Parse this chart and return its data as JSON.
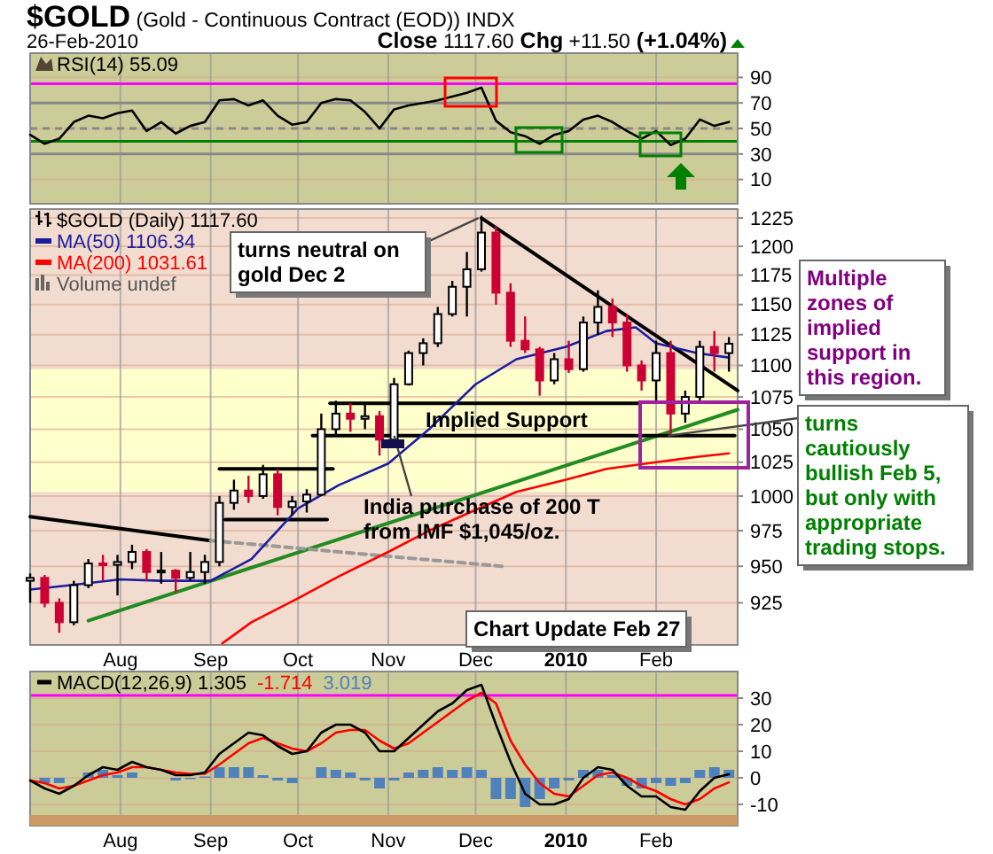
{
  "chart_data": [
    {
      "type": "line",
      "title": "$GOLD (Gold - Continuous Contract (EOD)) INDX",
      "subtitle": "26-Feb-2010",
      "annotations": [
        "Close 1117.60 Chg +11.50 (+1.04%)"
      ],
      "xlim": [
        "2009-07-01",
        "2010-03-01"
      ],
      "xticks": [
        {
          "value": "2009-08-01",
          "label": null
        },
        {
          "value": "2009-09-01",
          "label": null
        },
        {
          "value": "2009-10-01",
          "label": null
        },
        {
          "value": "2009-11-01",
          "label": null
        },
        {
          "value": "2009-12-01",
          "label": null
        },
        {
          "value": "2010-01-01",
          "label": null
        },
        {
          "value": "2010-02-01",
          "label": null
        }
      ],
      "tick_labels": "y",
      "ylim": [
        -9,
        109
      ],
      "yticks": [
        10,
        30,
        50,
        70,
        90
      ],
      "grid": true,
      "legend": "top left",
      "x": [
        "2009-07-01",
        "2009-07-06",
        "2009-07-11",
        "2009-07-16",
        "2009-07-21",
        "2009-07-26",
        "2009-07-31",
        "2009-08-05",
        "2009-08-10",
        "2009-08-15",
        "2009-08-20",
        "2009-08-25",
        "2009-08-30",
        "2009-09-04",
        "2009-09-09",
        "2009-09-14",
        "2009-09-19",
        "2009-09-24",
        "2009-09-29",
        "2009-10-04",
        "2009-10-09",
        "2009-10-14",
        "2009-10-19",
        "2009-10-24",
        "2009-10-29",
        "2009-11-03",
        "2009-11-08",
        "2009-11-13",
        "2009-11-18",
        "2009-11-23",
        "2009-11-28",
        "2009-12-03",
        "2009-12-08",
        "2009-12-13",
        "2009-12-18",
        "2009-12-23",
        "2009-12-28",
        "2010-01-02",
        "2010-01-07",
        "2010-01-12",
        "2010-01-17",
        "2010-01-22",
        "2010-01-27",
        "2010-02-01",
        "2010-02-06",
        "2010-02-11",
        "2010-02-16",
        "2010-02-21",
        "2010-02-26"
      ],
      "series": [
        {
          "name": "RSI(14) 55.09",
          "color": "#000000",
          "values": [
            45,
            38,
            42,
            55,
            60,
            58,
            62,
            64,
            48,
            55,
            46,
            52,
            55,
            72,
            73,
            68,
            72,
            60,
            53,
            55,
            70,
            73,
            72,
            63,
            50,
            65,
            68,
            70,
            72,
            75,
            78,
            82,
            56,
            47,
            44,
            38,
            45,
            48,
            57,
            60,
            55,
            48,
            42,
            48,
            37,
            42,
            57,
            52,
            55.09
          ]
        }
      ],
      "ref_lines": [
        {
          "axis": "y",
          "value": 85,
          "color": "#ff00ff"
        },
        {
          "axis": "y",
          "value": 70,
          "color": "#888888"
        },
        {
          "axis": "y",
          "value": 50,
          "color": "#888888",
          "line_style": "dashed"
        },
        {
          "axis": "y",
          "value": 40,
          "color": "#008000"
        },
        {
          "axis": "y",
          "value": 30,
          "color": "#888888"
        }
      ]
    },
    {
      "type": "candlestick",
      "annotations": [
        "Volume undef",
        {
          "text": "turns neutral on gold Dec 2",
          "x": "2009-12-02",
          "y": 1225
        },
        "Implied Support",
        {
          "text": "India purchase of 200 T from IMF $1,045/oz.",
          "x": "2009-11-03",
          "y": 1045
        },
        "Multiple zones of implied support in this region.",
        {
          "text": "turns cautiously bullish Feb 5, but only with appropriate trading stops.",
          "x": "2010-02-05",
          "y": 1045
        },
        "Chart Update Feb 27"
      ],
      "xlim": [
        "2009-07-01",
        "2010-03-01"
      ],
      "xticks": [
        {
          "value": "2009-08-01",
          "label": "Aug"
        },
        {
          "value": "2009-09-01",
          "label": "Sep"
        },
        {
          "value": "2009-10-01",
          "label": "Oct"
        },
        {
          "value": "2009-11-01",
          "label": "Nov"
        },
        {
          "value": "2009-12-01",
          "label": "Dec"
        },
        {
          "value": "2010-01-01",
          "label": "2010"
        },
        {
          "value": "2010-02-01",
          "label": "Feb"
        }
      ],
      "ylim": [
        897,
        1233
      ],
      "log": true,
      "yticks": [
        925,
        950,
        975,
        1000,
        1025,
        1050,
        1075,
        1100,
        1125,
        1150,
        1175,
        1200,
        1225
      ],
      "grid": true,
      "legend": "top left",
      "bands": [
        {
          "axis": "y",
          "from": 1003,
          "to": 1097,
          "color": "#ffffcc"
        }
      ],
      "x": [
        "2009-07-01",
        "2009-07-06",
        "2009-07-11",
        "2009-07-16",
        "2009-07-21",
        "2009-07-26",
        "2009-07-31",
        "2009-08-05",
        "2009-08-10",
        "2009-08-15",
        "2009-08-20",
        "2009-08-25",
        "2009-08-30",
        "2009-09-04",
        "2009-09-09",
        "2009-09-14",
        "2009-09-19",
        "2009-09-24",
        "2009-09-29",
        "2009-10-04",
        "2009-10-09",
        "2009-10-14",
        "2009-10-19",
        "2009-10-24",
        "2009-10-29",
        "2009-11-03",
        "2009-11-08",
        "2009-11-13",
        "2009-11-18",
        "2009-11-23",
        "2009-11-28",
        "2009-12-03",
        "2009-12-08",
        "2009-12-13",
        "2009-12-18",
        "2009-12-23",
        "2009-12-28",
        "2010-01-02",
        "2010-01-07",
        "2010-01-12",
        "2010-01-17",
        "2010-01-22",
        "2010-01-27",
        "2010-02-01",
        "2010-02-06",
        "2010-02-11",
        "2010-02-16",
        "2010-02-21",
        "2010-02-26"
      ],
      "series": [
        {
          "type": "line",
          "color": "#228b22",
          "x": [
            "2009-07-21",
            "2010-03-01"
          ],
          "values": [
            913,
            1065
          ]
        },
        {
          "type": "line",
          "color": "#000000",
          "x": [
            "2009-07-01",
            "2009-09-01"
          ],
          "values": [
            985,
            968
          ]
        },
        {
          "type": "line",
          "color": "#999999",
          "line_style": "dashed",
          "x": [
            "2009-09-01",
            "2009-12-10"
          ],
          "values": [
            968,
            950
          ]
        },
        {
          "type": "line",
          "color": "#000000",
          "x": [
            "2009-12-03",
            "2010-03-01"
          ],
          "values": [
            1225,
            1080
          ]
        },
        {
          "type": "line",
          "color": "#000000",
          "x": [
            "2009-09-04",
            "2009-10-13"
          ],
          "values": [
            1020,
            1020
          ]
        },
        {
          "type": "line",
          "color": "#000000",
          "x": [
            "2009-09-06",
            "2009-10-11"
          ],
          "values": [
            983,
            983
          ]
        },
        {
          "type": "line",
          "color": "#000000",
          "x": [
            "2009-10-12",
            "2010-01-26"
          ],
          "values": [
            1070,
            1070
          ]
        },
        {
          "type": "line",
          "color": "#000000",
          "x": [
            "2009-10-06",
            "2010-02-28"
          ],
          "values": [
            1045,
            1045
          ]
        },
        {
          "type": "line",
          "name": "MA(50) 1106.34",
          "color": "#1c1ca0",
          "x": [
            "2009-07-01",
            "2009-07-15",
            "2009-08-01",
            "2009-08-15",
            "2009-09-01",
            "2009-09-15",
            "2009-10-01",
            "2009-10-15",
            "2009-11-01",
            "2009-11-15",
            "2009-12-01",
            "2009-12-15",
            "2010-01-01",
            "2010-01-15",
            "2010-01-25",
            "2010-02-01",
            "2010-02-15",
            "2010-02-26"
          ],
          "values": [
            934,
            937,
            941,
            940,
            940,
            955,
            991,
            1008,
            1024,
            1050,
            1085,
            1105,
            1115,
            1128,
            1131,
            1118,
            1110,
            1106.34
          ]
        },
        {
          "type": "line",
          "name": "MA(200) 1031.61",
          "color": "#ff0000",
          "x": [
            "2009-09-05",
            "2009-09-15",
            "2009-10-01",
            "2009-10-15",
            "2009-11-01",
            "2009-11-15",
            "2009-12-01",
            "2009-12-15",
            "2010-01-01",
            "2010-01-15",
            "2010-02-01",
            "2010-02-15",
            "2010-02-26"
          ],
          "values": [
            898,
            912,
            928,
            943,
            960,
            975,
            990,
            1003,
            1012,
            1020,
            1025,
            1029,
            1031.61
          ]
        },
        {
          "name": "$GOLD (Daily) 1117.60",
          "colors": [
            "#000000",
            "#cc0033",
            "#cc0033",
            "#000000",
            "#000000",
            "#cc0033",
            "#000000",
            "#000000",
            "#cc0033",
            "#000000",
            "#cc0033",
            "#000000",
            "#000000",
            "#000000",
            "#000000",
            "#cc0033",
            "#000000",
            "#cc0033",
            "#000000",
            "#000000",
            "#000000",
            "#000000",
            "#cc0033",
            "#000000",
            "#cc0033",
            "#000000",
            "#000000",
            "#000000",
            "#000000",
            "#000000",
            "#000000",
            "#000000",
            "#cc0033",
            "#cc0033",
            "#cc0033",
            "#cc0033",
            "#000000",
            "#cc0033",
            "#000000",
            "#000000",
            "#cc0033",
            "#cc0033",
            "#cc0033",
            "#000000",
            "#cc0033",
            "#000000",
            "#000000",
            "#cc0033",
            "#000000"
          ],
          "ohlc": [
            [
              940,
              945,
              925,
              942
            ],
            [
              942,
              944,
              922,
              925
            ],
            [
              925,
              928,
              905,
              912
            ],
            [
              912,
              940,
              910,
              937
            ],
            [
              937,
              955,
              935,
              952
            ],
            [
              952,
              958,
              940,
              951
            ],
            [
              951,
              958,
              930,
              953
            ],
            [
              953,
              965,
              948,
              960
            ],
            [
              960,
              962,
              940,
              946
            ],
            [
              946,
              960,
              938,
              947
            ],
            [
              947,
              948,
              932,
              942
            ],
            [
              942,
              960,
              940,
              946
            ],
            [
              946,
              958,
              938,
              953
            ],
            [
              953,
              1000,
              950,
              995
            ],
            [
              995,
              1012,
              990,
              1004
            ],
            [
              1004,
              1015,
              995,
              1000
            ],
            [
              1000,
              1023,
              998,
              1016
            ],
            [
              1016,
              1020,
              986,
              992
            ],
            [
              992,
              1000,
              986,
              996
            ],
            [
              996,
              1005,
              988,
              1001
            ],
            [
              1001,
              1062,
              1000,
              1050
            ],
            [
              1050,
              1072,
              1045,
              1062
            ],
            [
              1062,
              1070,
              1048,
              1058
            ],
            [
              1058,
              1070,
              1050,
              1060
            ],
            [
              1060,
              1064,
              1030,
              1042
            ],
            [
              1042,
              1090,
              1040,
              1085
            ],
            [
              1085,
              1112,
              1084,
              1110
            ],
            [
              1110,
              1122,
              1100,
              1118
            ],
            [
              1118,
              1148,
              1115,
              1142
            ],
            [
              1142,
              1170,
              1140,
              1165
            ],
            [
              1165,
              1195,
              1140,
              1180
            ],
            [
              1180,
              1227,
              1178,
              1212
            ],
            [
              1212,
              1218,
              1150,
              1160
            ],
            [
              1160,
              1168,
              1115,
              1120
            ],
            [
              1120,
              1140,
              1110,
              1113
            ],
            [
              1113,
              1115,
              1076,
              1088
            ],
            [
              1088,
              1110,
              1085,
              1105
            ],
            [
              1105,
              1120,
              1094,
              1097
            ],
            [
              1097,
              1140,
              1095,
              1135
            ],
            [
              1135,
              1162,
              1125,
              1148
            ],
            [
              1148,
              1155,
              1123,
              1135
            ],
            [
              1135,
              1142,
              1095,
              1100
            ],
            [
              1100,
              1104,
              1080,
              1088
            ],
            [
              1088,
              1120,
              1072,
              1110
            ],
            [
              1110,
              1120,
              1045,
              1062
            ],
            [
              1062,
              1080,
              1055,
              1075
            ],
            [
              1075,
              1120,
              1072,
              1115
            ],
            [
              1115,
              1128,
              1095,
              1110
            ],
            [
              1110,
              1123,
              1095,
              1117.6
            ]
          ]
        }
      ]
    },
    {
      "type": "line",
      "xlim": [
        "2009-07-01",
        "2010-03-01"
      ],
      "xticks": [
        {
          "value": "2009-08-01",
          "label": "Aug"
        },
        {
          "value": "2009-09-01",
          "label": "Sep"
        },
        {
          "value": "2009-10-01",
          "label": "Oct"
        },
        {
          "value": "2009-11-01",
          "label": "Nov"
        },
        {
          "value": "2009-12-01",
          "label": "Dec"
        },
        {
          "value": "2010-01-01",
          "label": "2010"
        },
        {
          "value": "2010-02-01",
          "label": "Feb"
        }
      ],
      "ylim": [
        -18,
        40
      ],
      "yticks": [
        -10,
        0,
        10,
        20,
        30
      ],
      "grid": true,
      "legend": "top left",
      "ref_lines": [
        {
          "axis": "y",
          "value": 31,
          "color": "#ff00ff"
        }
      ],
      "x": [
        "2009-07-01",
        "2009-07-06",
        "2009-07-11",
        "2009-07-16",
        "2009-07-21",
        "2009-07-26",
        "2009-07-31",
        "2009-08-05",
        "2009-08-10",
        "2009-08-15",
        "2009-08-20",
        "2009-08-25",
        "2009-08-30",
        "2009-09-04",
        "2009-09-09",
        "2009-09-14",
        "2009-09-19",
        "2009-09-24",
        "2009-09-29",
        "2009-10-04",
        "2009-10-09",
        "2009-10-14",
        "2009-10-19",
        "2009-10-24",
        "2009-10-29",
        "2009-11-03",
        "2009-11-08",
        "2009-11-13",
        "2009-11-18",
        "2009-11-23",
        "2009-11-28",
        "2009-12-03",
        "2009-12-08",
        "2009-12-13",
        "2009-12-18",
        "2009-12-23",
        "2009-12-28",
        "2010-01-02",
        "2010-01-07",
        "2010-01-12",
        "2010-01-17",
        "2010-01-22",
        "2010-01-27",
        "2010-02-01",
        "2010-02-06",
        "2010-02-11",
        "2010-02-16",
        "2010-02-21",
        "2010-02-26"
      ],
      "series": [
        {
          "type": "bar",
          "name": "3.019",
          "color": "#4f81bd",
          "values": [
            0,
            -2,
            -2,
            0,
            2,
            3,
            1,
            2,
            0,
            0,
            -1,
            -0.5,
            0.5,
            4,
            4,
            4,
            1,
            -1,
            -2,
            0,
            4,
            3,
            2,
            -1,
            -4,
            -1,
            2,
            3,
            4,
            3,
            4,
            3,
            -8,
            -8,
            -11,
            -8,
            -4,
            -1,
            3,
            3,
            1,
            -3,
            -4,
            -2,
            -3,
            -2,
            3,
            4,
            3.019
          ]
        },
        {
          "name": "-1.714",
          "color": "#ff0000",
          "values": [
            -1,
            -2,
            -4,
            -3,
            -1,
            1,
            2,
            4,
            4,
            3,
            2,
            1.5,
            1.5,
            5,
            9,
            13,
            15,
            13,
            11,
            10,
            13,
            17,
            18,
            18,
            14,
            11,
            13,
            17,
            21,
            25,
            29,
            32,
            28,
            14,
            5,
            -2,
            -6,
            -7,
            -3,
            1,
            2,
            0,
            -3,
            -5,
            -8,
            -10,
            -8,
            -4,
            -1.714
          ]
        },
        {
          "name": "MACD(12,26,9) 1.305",
          "color": "#000000",
          "values": [
            -1,
            -4,
            -6,
            -3,
            1,
            4,
            3,
            6,
            4,
            3,
            1,
            1,
            2,
            9,
            13,
            17,
            16,
            12,
            9,
            10,
            17,
            20,
            20,
            17,
            10,
            10,
            15,
            20,
            25,
            28,
            33,
            35,
            20,
            6,
            -6,
            -10,
            -10,
            -8,
            0,
            4,
            3,
            -3,
            -7,
            -7,
            -11,
            -12,
            -5,
            0,
            1.305
          ]
        }
      ]
    }
  ]
}
